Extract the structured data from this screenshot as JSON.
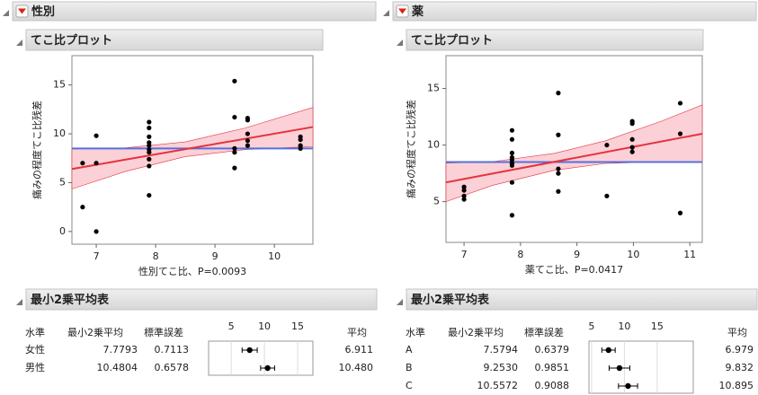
{
  "panels": [
    {
      "title": "性別",
      "plot_title": "てこ比プロット",
      "table_title": "最小2乗平均表",
      "table": {
        "headers": [
          "水準",
          "最小2乗平均",
          "標準誤差",
          "平均"
        ],
        "rows": [
          [
            "女性",
            "7.7793",
            "0.7113",
            "6.911"
          ],
          [
            "男性",
            "10.4804",
            "0.6578",
            "10.480"
          ]
        ]
      },
      "mini_xlim": [
        1.6,
        17.3
      ],
      "mini_xticks": [
        5,
        10,
        15
      ]
    },
    {
      "title": "薬",
      "plot_title": "てこ比プロット",
      "table_title": "最小2乗平均表",
      "table": {
        "headers": [
          "水準",
          "最小2乗平均",
          "標準誤差",
          "平均"
        ],
        "rows": [
          [
            "A",
            "7.5794",
            "0.6379",
            "6.979"
          ],
          [
            "B",
            "9.2530",
            "0.9851",
            "9.832"
          ],
          [
            "C",
            "10.5572",
            "0.9088",
            "10.895"
          ]
        ]
      },
      "mini_xlim": [
        4.6,
        20.5
      ],
      "mini_xticks": [
        5,
        10,
        15
      ]
    }
  ],
  "chart_data": [
    {
      "type": "scatter",
      "x_label": "性別てこ比、P=0.0093",
      "y_label": "痛みの程度てこ比残差",
      "x": [
        6.77,
        6.77,
        7.0,
        7.0,
        7.0,
        7.89,
        7.89,
        7.89,
        7.89,
        7.89,
        7.89,
        7.89,
        7.89,
        7.89,
        7.89,
        9.33,
        9.33,
        9.33,
        9.33,
        9.33,
        9.55,
        9.55,
        9.55,
        9.55,
        9.55,
        10.44,
        10.44,
        10.44,
        10.44
      ],
      "y": [
        7.0,
        2.5,
        9.8,
        7.0,
        0.0,
        11.2,
        10.6,
        9.7,
        9.1,
        8.8,
        8.4,
        8.1,
        7.4,
        6.7,
        3.7,
        15.4,
        11.7,
        8.5,
        8.1,
        6.5,
        11.6,
        11.4,
        10.0,
        9.3,
        8.8,
        9.7,
        9.4,
        8.8,
        8.5
      ],
      "point_color": "#000000",
      "xlim": [
        6.59,
        10.65
      ],
      "ylim": [
        -1.3,
        18.0
      ],
      "xticks": [
        7,
        8,
        9,
        10
      ],
      "yticks": [
        0,
        5,
        10,
        15
      ],
      "fit_line": {
        "color": "#e5323d",
        "x": [
          6.59,
          10.65
        ],
        "y": [
          6.4,
          10.7
        ]
      },
      "mean_line": {
        "color": "#5570dd",
        "value": 8.5
      },
      "confidence_band": {
        "color": "#fbd0d6",
        "x": [
          6.59,
          7.5,
          8.5,
          9.5,
          10.65
        ],
        "upper": [
          8.45,
          8.56,
          9.17,
          10.58,
          12.7
        ],
        "lower": [
          4.35,
          6.16,
          7.67,
          8.38,
          8.7
        ]
      }
    },
    {
      "type": "scatter",
      "x_label": "薬てこ比、P=0.0417",
      "y_label": "痛みの程度てこ比残差",
      "x": [
        7.0,
        7.0,
        7.0,
        7.0,
        7.85,
        7.85,
        7.85,
        7.85,
        7.85,
        7.85,
        7.85,
        7.85,
        7.85,
        8.67,
        8.67,
        8.67,
        8.67,
        8.67,
        9.53,
        9.53,
        9.98,
        9.98,
        9.98,
        9.98,
        9.98,
        10.83,
        10.83,
        10.83
      ],
      "y": [
        6.3,
        6.0,
        5.5,
        5.2,
        11.3,
        10.5,
        9.3,
        8.9,
        8.7,
        8.4,
        8.2,
        6.7,
        3.8,
        14.6,
        10.9,
        7.9,
        7.5,
        5.9,
        10.0,
        5.5,
        12.1,
        11.9,
        10.5,
        9.8,
        9.4,
        13.7,
        11.0,
        4.0
      ],
      "point_color": "#000000",
      "xlim": [
        6.68,
        11.22
      ],
      "ylim": [
        1.4,
        17.9
      ],
      "xticks": [
        7,
        8,
        9,
        10,
        11
      ],
      "yticks": [
        5,
        10,
        15
      ],
      "fit_line": {
        "color": "#e5323d",
        "x": [
          6.68,
          11.22
        ],
        "y": [
          6.7,
          11.0
        ]
      },
      "mean_line": {
        "color": "#5570dd",
        "value": 8.5
      },
      "confidence_band": {
        "color": "#fbd0d6",
        "x": [
          6.68,
          7.5,
          8.6,
          9.5,
          10.5,
          11.22
        ],
        "upper": [
          8.4,
          8.53,
          9.27,
          10.37,
          12.12,
          13.55
        ],
        "lower": [
          5.0,
          6.43,
          7.77,
          8.37,
          8.52,
          8.45
        ]
      }
    }
  ]
}
